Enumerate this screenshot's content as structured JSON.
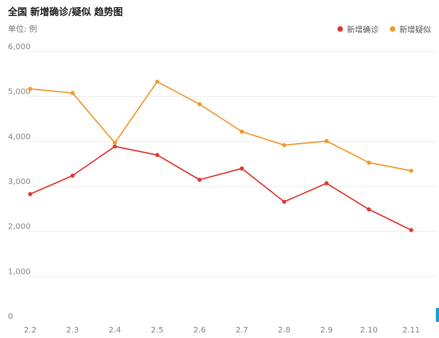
{
  "header": {
    "title": "全国 新增确诊/疑似 趋势图",
    "unit": "单位: 例"
  },
  "colors": {
    "confirmed": "#dd3a36",
    "suspected": "#ee9a2f",
    "grid": "#eeeeee"
  },
  "chart_data": {
    "type": "line",
    "title": "全国 新增确诊/疑似 趋势图",
    "xlabel": "",
    "ylabel": "单位: 例",
    "categories": [
      "2.2",
      "2.3",
      "2.4",
      "2.5",
      "2.6",
      "2.7",
      "2.8",
      "2.9",
      "2.10",
      "2.11"
    ],
    "yticks": [
      "0",
      "1,000",
      "2,000",
      "3,000",
      "4,000",
      "5,000",
      "6,000"
    ],
    "ylim": [
      0,
      6000
    ],
    "grid": true,
    "legend_position": "top-right",
    "series": [
      {
        "name": "新增确诊",
        "color": "#dd3a36",
        "values": [
          2830,
          3240,
          3890,
          3700,
          3150,
          3400,
          2660,
          3070,
          2490,
          2030
        ]
      },
      {
        "name": "新增疑似",
        "color": "#ee9a2f",
        "values": [
          5170,
          5080,
          3970,
          5330,
          4830,
          4220,
          3920,
          4010,
          3530,
          3350
        ]
      }
    ]
  }
}
